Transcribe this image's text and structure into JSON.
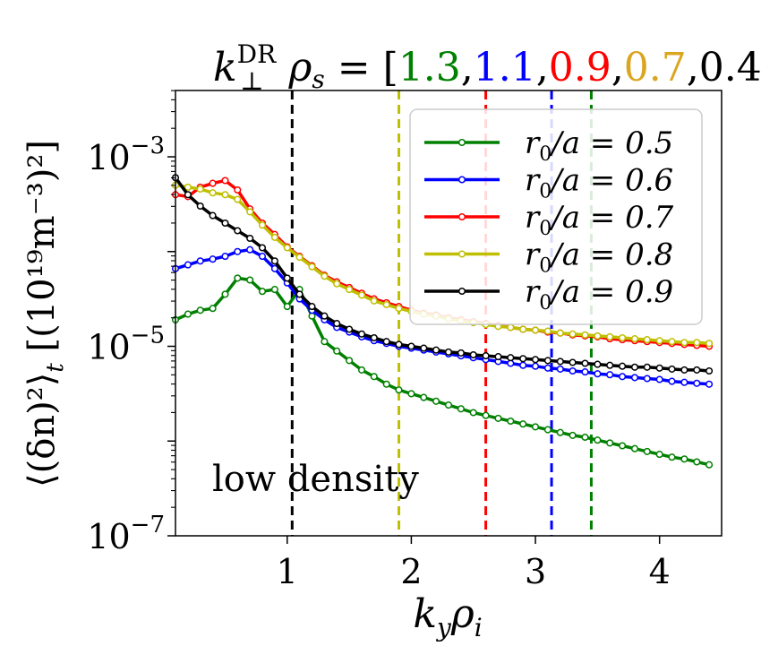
{
  "chart_data": {
    "type": "line",
    "title": {
      "lhs": "k",
      "lhs_sup": "DR",
      "lhs_sub": "⊥",
      "lhs_rho": "ρ",
      "lhs_rho_sub": "s",
      "equals": " = [",
      "close": "]",
      "separator": ",",
      "values": [
        {
          "text": "1.3",
          "color": "#008000"
        },
        {
          "text": "1.1",
          "color": "#0000ff"
        },
        {
          "text": "0.9",
          "color": "#ff0000"
        },
        {
          "text": "0.7",
          "color": "#daa520"
        },
        {
          "text": "0.4",
          "color": "#000000"
        }
      ]
    },
    "xlabel": {
      "main": "k",
      "sub1": "y",
      "rho": "ρ",
      "sub2": "i"
    },
    "ylabel": {
      "text": "⟨(δn)²⟩",
      "sub": "t",
      "units": "[(10¹⁹m⁻³)²]"
    },
    "xlim": [
      0.1,
      4.5
    ],
    "ylim_log10": [
      -7,
      -2.3
    ],
    "xticks": [
      {
        "value": 1,
        "label": "1"
      },
      {
        "value": 2,
        "label": "2"
      },
      {
        "value": 3,
        "label": "3"
      },
      {
        "value": 4,
        "label": "4"
      }
    ],
    "yticks": [
      {
        "exp": -7,
        "base": "10",
        "sup": "−7"
      },
      {
        "exp": -5,
        "base": "10",
        "sup": "−5"
      },
      {
        "exp": -3,
        "base": "10",
        "sup": "−3"
      }
    ],
    "annotation": "low density",
    "vlines": [
      {
        "x": 1.04,
        "color": "#000000"
      },
      {
        "x": 1.9,
        "color": "#bfbf00"
      },
      {
        "x": 2.6,
        "color": "#ff0000"
      },
      {
        "x": 3.13,
        "color": "#0000ff"
      },
      {
        "x": 3.45,
        "color": "#008000"
      }
    ],
    "x": [
      0.1,
      0.2,
      0.3,
      0.4,
      0.5,
      0.6,
      0.7,
      0.8,
      0.9,
      1.0,
      1.1,
      1.2,
      1.3,
      1.4,
      1.5,
      1.6,
      1.7,
      1.8,
      1.9,
      2.0,
      2.1,
      2.2,
      2.3,
      2.4,
      2.5,
      2.6,
      2.7,
      2.8,
      2.9,
      3.0,
      3.1,
      3.2,
      3.3,
      3.4,
      3.5,
      3.6,
      3.7,
      3.8,
      3.9,
      4.0,
      4.1,
      4.2,
      4.3,
      4.4
    ],
    "series": [
      {
        "name": "r0/a = 0.5",
        "legend_lhs": "r",
        "legend_sub": "0",
        "legend_rhs": "/a = 0.5",
        "color": "#008000",
        "log10": [
          -4.72,
          -4.66,
          -4.62,
          -4.6,
          -4.45,
          -4.28,
          -4.3,
          -4.42,
          -4.4,
          -4.58,
          -4.4,
          -4.68,
          -4.95,
          -5.05,
          -5.15,
          -5.25,
          -5.32,
          -5.4,
          -5.46,
          -5.5,
          -5.54,
          -5.58,
          -5.62,
          -5.66,
          -5.7,
          -5.73,
          -5.76,
          -5.79,
          -5.82,
          -5.85,
          -5.88,
          -5.91,
          -5.94,
          -5.96,
          -5.99,
          -6.02,
          -6.05,
          -6.08,
          -6.11,
          -6.14,
          -6.17,
          -6.19,
          -6.22,
          -6.25
        ]
      },
      {
        "name": "r0/a = 0.6",
        "legend_lhs": "r",
        "legend_sub": "0",
        "legend_rhs": "/a = 0.6",
        "color": "#0000ff",
        "log10": [
          -4.18,
          -4.14,
          -4.1,
          -4.08,
          -4.05,
          -4.0,
          -3.98,
          -4.05,
          -4.18,
          -4.33,
          -4.5,
          -4.62,
          -4.72,
          -4.8,
          -4.85,
          -4.9,
          -4.94,
          -4.97,
          -5.0,
          -5.02,
          -5.04,
          -5.06,
          -5.08,
          -5.1,
          -5.12,
          -5.14,
          -5.16,
          -5.18,
          -5.2,
          -5.21,
          -5.23,
          -5.24,
          -5.26,
          -5.27,
          -5.29,
          -5.3,
          -5.32,
          -5.33,
          -5.34,
          -5.35,
          -5.37,
          -5.38,
          -5.39,
          -5.4
        ]
      },
      {
        "name": "r0/a = 0.7",
        "legend_lhs": "r",
        "legend_sub": "0",
        "legend_rhs": "/a = 0.7",
        "color": "#ff0000",
        "log10": [
          -3.4,
          -3.42,
          -3.32,
          -3.28,
          -3.25,
          -3.35,
          -3.55,
          -3.7,
          -3.82,
          -3.95,
          -4.05,
          -4.15,
          -4.25,
          -4.32,
          -4.38,
          -4.44,
          -4.5,
          -4.54,
          -4.58,
          -4.62,
          -4.65,
          -4.67,
          -4.7,
          -4.72,
          -4.74,
          -4.76,
          -4.78,
          -4.8,
          -4.82,
          -4.83,
          -4.85,
          -4.86,
          -4.88,
          -4.89,
          -4.9,
          -4.92,
          -4.93,
          -4.94,
          -4.95,
          -4.96,
          -4.97,
          -4.98,
          -4.99,
          -5.0
        ]
      },
      {
        "name": "r0/a = 0.8",
        "legend_lhs": "r",
        "legend_sub": "0",
        "legend_rhs": "/a = 0.8",
        "color": "#bfbf00",
        "log10": [
          -3.3,
          -3.32,
          -3.34,
          -3.38,
          -3.4,
          -3.45,
          -3.58,
          -3.72,
          -3.85,
          -3.96,
          -4.06,
          -4.16,
          -4.26,
          -4.34,
          -4.4,
          -4.46,
          -4.52,
          -4.56,
          -4.6,
          -4.63,
          -4.66,
          -4.68,
          -4.71,
          -4.73,
          -4.75,
          -4.77,
          -4.79,
          -4.8,
          -4.82,
          -4.83,
          -4.84,
          -4.86,
          -4.87,
          -4.88,
          -4.89,
          -4.9,
          -4.91,
          -4.92,
          -4.93,
          -4.94,
          -4.95,
          -4.96,
          -4.96,
          -4.97
        ]
      },
      {
        "name": "r0/a = 0.9",
        "legend_lhs": "r",
        "legend_sub": "0",
        "legend_rhs": "/a = 0.9",
        "color": "#000000",
        "log10": [
          -3.22,
          -3.4,
          -3.52,
          -3.62,
          -3.7,
          -3.78,
          -3.86,
          -3.96,
          -4.1,
          -4.28,
          -4.45,
          -4.58,
          -4.68,
          -4.76,
          -4.82,
          -4.87,
          -4.91,
          -4.95,
          -4.98,
          -5.0,
          -5.02,
          -5.04,
          -5.06,
          -5.07,
          -5.09,
          -5.1,
          -5.11,
          -5.12,
          -5.13,
          -5.14,
          -5.15,
          -5.16,
          -5.17,
          -5.18,
          -5.19,
          -5.2,
          -5.21,
          -5.22,
          -5.22,
          -5.23,
          -5.24,
          -5.25,
          -5.25,
          -5.26
        ]
      }
    ]
  }
}
